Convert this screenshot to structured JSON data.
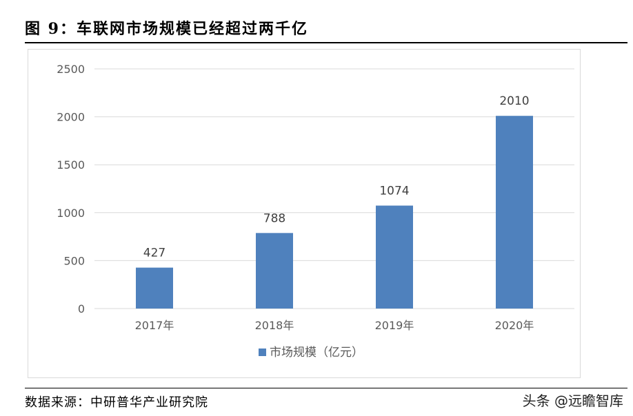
{
  "figure": {
    "title": "图 9：车联网市场规模已经超过两千亿",
    "source": "数据来源：中研普华产业研究院",
    "watermark": "头条 @远瞻智库"
  },
  "chart_data": {
    "type": "bar",
    "categories": [
      "2017年",
      "2018年",
      "2019年",
      "2020年"
    ],
    "series": [
      {
        "name": "市场规模（亿元）",
        "values": [
          427,
          788,
          1074,
          2010
        ]
      }
    ],
    "ylim": [
      0,
      2500
    ],
    "yticks": [
      0,
      500,
      1000,
      1500,
      2000,
      2500
    ],
    "grid": true,
    "legend": "bottom",
    "bar_color": "#4f81bd",
    "grid_color": "#d9d9d9",
    "label_color": "#595959"
  }
}
